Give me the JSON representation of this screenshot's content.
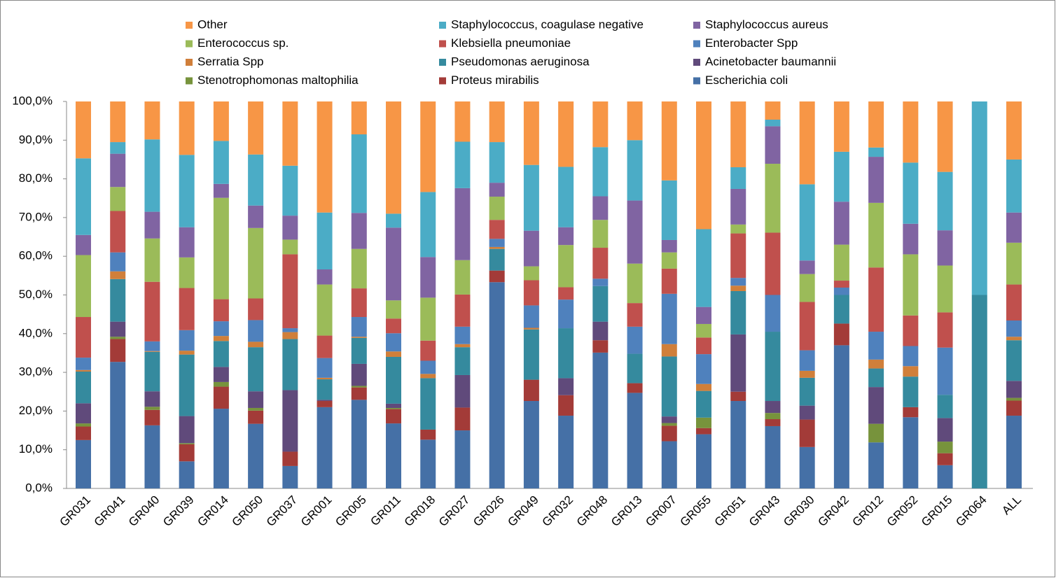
{
  "chart_data": {
    "type": "stacked_bar",
    "categories": [
      "GR031",
      "GR041",
      "GR040",
      "GR039",
      "GR014",
      "GR050",
      "GR037",
      "GR001",
      "GR005",
      "GR011",
      "GR018",
      "GR027",
      "GR026",
      "GR049",
      "GR032",
      "GR048",
      "GR013",
      "GR007",
      "GR055",
      "GR051",
      "GR043",
      "GR030",
      "GR042",
      "GR012",
      "GR052",
      "GR015",
      "GR064",
      "ALL"
    ],
    "series": [
      {
        "name": "Other",
        "color": "#f79646",
        "values": [
          14.7,
          10.5,
          9.8,
          13.8,
          10.2,
          13.7,
          16.6,
          28.7,
          8.5,
          29,
          23.4,
          10.4,
          10.5,
          16.4,
          16.9,
          11.8,
          10,
          20.4,
          33,
          17,
          4.7,
          21.4,
          13,
          11.9,
          15.8,
          18.2,
          0,
          15
        ]
      },
      {
        "name": "Staphylococcus, coagulase negative",
        "color": "#4bacc6",
        "values": [
          19.8,
          3,
          18.7,
          18.7,
          11.1,
          13.2,
          12.9,
          14.7,
          20.3,
          3.6,
          16.8,
          12,
          10.5,
          17,
          15.6,
          12.7,
          15.6,
          15.4,
          20.1,
          5.6,
          1.7,
          19.7,
          12.9,
          2.4,
          15.8,
          15.1,
          50,
          13.7
        ]
      },
      {
        "name": "Staphylococcus aureus",
        "color": "#8064a2",
        "values": [
          5.2,
          8.6,
          6.9,
          7.8,
          3.6,
          5.8,
          6.2,
          3.9,
          9.3,
          18.8,
          10.5,
          18.6,
          3.6,
          9.2,
          4.6,
          6.1,
          16.3,
          3.2,
          4.4,
          9.2,
          9.7,
          3.5,
          11.1,
          11.9,
          7.9,
          9.1,
          0,
          7.8
        ]
      },
      {
        "name": "Enterococcus sp.",
        "color": "#9bbb59",
        "values": [
          16,
          6.2,
          11.2,
          7.9,
          26.2,
          18.2,
          3.8,
          13.2,
          10.2,
          4.7,
          11.1,
          8.9,
          6,
          3.6,
          10.9,
          7.2,
          10.2,
          4.2,
          3.5,
          2.3,
          17.8,
          7.2,
          9.3,
          16.7,
          15.8,
          12.1,
          0,
          10.8
        ]
      },
      {
        "name": "Klebsiella pneumoniae",
        "color": "#c0504d",
        "values": [
          10.5,
          10.7,
          15.4,
          10.9,
          5.7,
          5.6,
          19.1,
          5.8,
          7.4,
          3.8,
          5.2,
          8.3,
          4.9,
          6.5,
          3.2,
          8,
          6.1,
          6.5,
          4.3,
          11.5,
          16.1,
          12.5,
          1.8,
          16.6,
          7.9,
          9.1,
          0,
          9.3
        ]
      },
      {
        "name": "Enterobacter Spp",
        "color": "#4f81bd",
        "values": [
          3.2,
          4.9,
          2.5,
          5.3,
          3.8,
          5.6,
          1,
          5.1,
          5.1,
          4.7,
          3.4,
          4.5,
          2.1,
          5.8,
          7.4,
          1.9,
          7,
          13,
          7.7,
          2,
          9.5,
          5.3,
          1.9,
          7.2,
          5.2,
          12.2,
          0,
          4.2
        ]
      },
      {
        "name": "Serratia Spp",
        "color": "#d07f3a",
        "values": [
          0.4,
          2,
          0.2,
          1,
          1.3,
          1.4,
          1.8,
          0.4,
          0.3,
          1.4,
          1.1,
          0.8,
          0.5,
          0.4,
          0,
          0,
          0,
          3.2,
          1.8,
          1.4,
          0,
          1.8,
          0,
          2.3,
          2.7,
          0,
          0,
          0.9
        ]
      },
      {
        "name": "Pseudomonas aeruginosa",
        "color": "#358a9e",
        "values": [
          8.2,
          11,
          10.2,
          15.9,
          6.7,
          11.4,
          13.2,
          5.3,
          6.7,
          12.1,
          13.3,
          7.2,
          5.6,
          13,
          12.9,
          9.2,
          7.6,
          15.5,
          6.9,
          11.2,
          17.9,
          7.2,
          7.4,
          4.8,
          7.9,
          6,
          50,
          10.5
        ]
      },
      {
        "name": "Acinetobacter baumannii",
        "color": "#604a7b",
        "values": [
          5.2,
          3.9,
          4,
          7,
          3.9,
          4.3,
          15.9,
          0.3,
          5.7,
          1.1,
          0,
          8.4,
          0,
          0,
          4.4,
          4.8,
          0,
          1.7,
          0,
          14.8,
          3.1,
          3.6,
          0,
          9.5,
          0,
          6.1,
          0,
          4.4
        ]
      },
      {
        "name": "Stenotrophomonas maltophilia",
        "color": "#77933c",
        "values": [
          0.8,
          0.6,
          0.8,
          0.3,
          1.2,
          0.7,
          0,
          0,
          0.4,
          0.3,
          0,
          0,
          0,
          0,
          0,
          0,
          0,
          0.7,
          2.7,
          0,
          1.6,
          0,
          0,
          4.8,
          0,
          3,
          0,
          0.7
        ]
      },
      {
        "name": "Proteus mirabilis",
        "color": "#a33b38",
        "values": [
          3.5,
          5.9,
          4,
          4.4,
          5.7,
          3.4,
          3.7,
          1.6,
          3.2,
          3.7,
          2.6,
          5.9,
          3,
          5.5,
          5.3,
          3.2,
          2.5,
          4,
          1.6,
          2.4,
          1.8,
          7.1,
          5.6,
          0,
          2.6,
          3.1,
          0,
          3.9
        ]
      },
      {
        "name": "Escherichia coli",
        "color": "#4570a6",
        "values": [
          12.5,
          32.7,
          16.3,
          7,
          20.6,
          16.7,
          5.8,
          21,
          22.9,
          16.8,
          12.6,
          15,
          53.3,
          22.6,
          18.8,
          35.1,
          24.7,
          12.2,
          14,
          22.6,
          16.1,
          10.7,
          37,
          11.9,
          18.4,
          6,
          0,
          18.8
        ]
      }
    ],
    "ylim": [
      0,
      100
    ],
    "yticks": [
      {
        "value": 0,
        "label": "0,0%"
      },
      {
        "value": 10,
        "label": "10,0%"
      },
      {
        "value": 20,
        "label": "20,0%"
      },
      {
        "value": 30,
        "label": "30,0%"
      },
      {
        "value": 40,
        "label": "40,0%"
      },
      {
        "value": 50,
        "label": "50,0%"
      },
      {
        "value": 60,
        "label": "60,0%"
      },
      {
        "value": 70,
        "label": "70,0%"
      },
      {
        "value": 80,
        "label": "80,0%"
      },
      {
        "value": 90,
        "label": "90,0%"
      },
      {
        "value": 100,
        "label": "100,0%"
      }
    ],
    "grid": false,
    "legend": "top"
  }
}
